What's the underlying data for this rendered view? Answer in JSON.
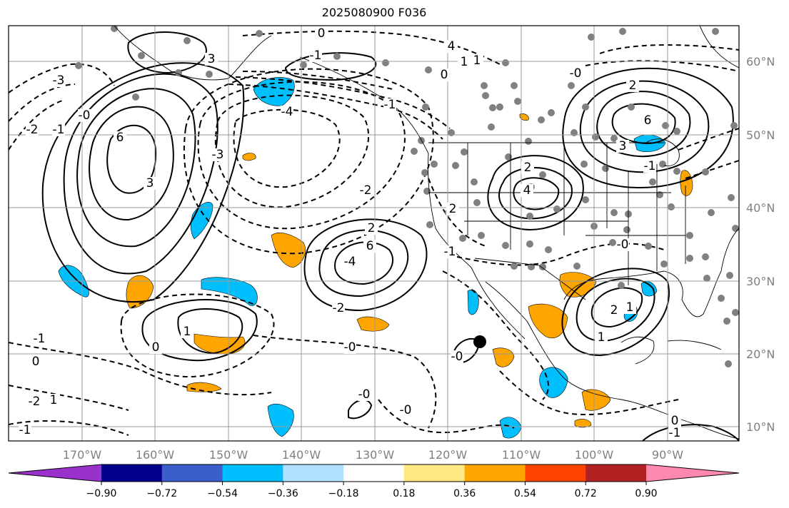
{
  "title": "2025080900 F036",
  "map": {
    "lon_labels": [
      "170°W",
      "160°W",
      "150°W",
      "140°W",
      "130°W",
      "120°W",
      "110°W",
      "100°W",
      "90°W"
    ],
    "lat_labels": [
      "60°N",
      "50°N",
      "40°N",
      "30°N",
      "20°N",
      "10°N"
    ],
    "label_color": "#808080",
    "contour_labels": [
      "0",
      "-1",
      "-3",
      "-2",
      "-1",
      "-0",
      "4",
      "1",
      "6",
      "3",
      "-3",
      "-4",
      "-1",
      "-2",
      "2",
      "6",
      "-4",
      "-2",
      "-0",
      "2",
      "-1",
      "-0",
      "-1",
      "1",
      "0",
      "-2",
      "-1",
      "-0",
      "-0",
      "0",
      "3",
      "0",
      "1",
      "4",
      "2",
      "6",
      "2",
      "-0",
      "1",
      "2",
      "3",
      "1",
      "-0",
      "-1",
      "0",
      "-1",
      "1"
    ],
    "marker": "black-dot"
  },
  "colorbar": {
    "ticks": [
      "−0.90",
      "−0.72",
      "−0.54",
      "−0.36",
      "−0.18",
      "0.18",
      "0.36",
      "0.54",
      "0.72",
      "0.90"
    ],
    "colors": [
      "#9932cc",
      "#00008b",
      "#3a5fcd",
      "#00bfff",
      "#b0e2ff",
      "#ffffff",
      "#ffe882",
      "#ffa500",
      "#ff4500",
      "#b22222",
      "#ff88b0"
    ]
  }
}
